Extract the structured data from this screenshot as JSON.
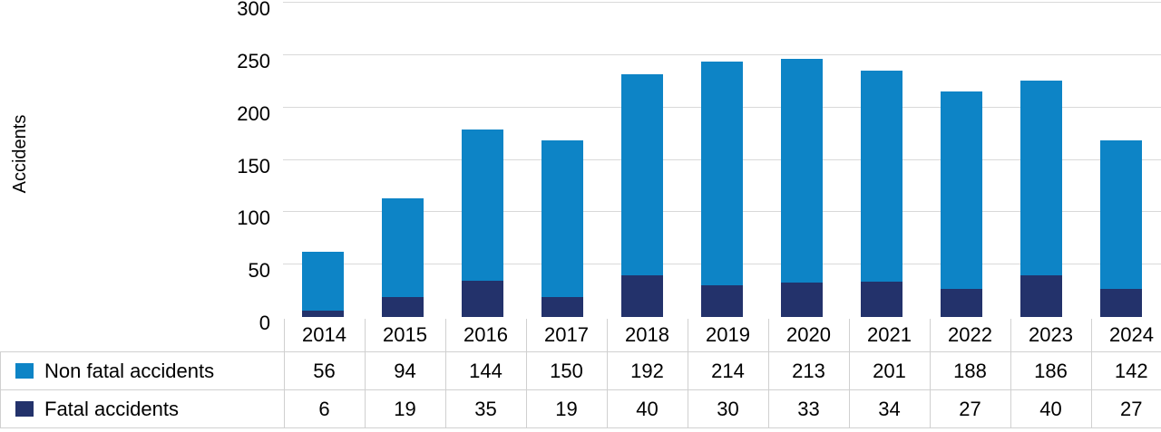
{
  "chart_data": {
    "type": "bar",
    "stacked": true,
    "title": "",
    "xlabel": "",
    "ylabel": "Accidents",
    "categories": [
      "2014",
      "2015",
      "2016",
      "2017",
      "2018",
      "2019",
      "2020",
      "2021",
      "2022",
      "2023",
      "2024"
    ],
    "series": [
      {
        "name": "Non fatal accidents",
        "color": "#0d84c6",
        "values": [
          56,
          94,
          144,
          150,
          192,
          214,
          213,
          201,
          188,
          186,
          142
        ]
      },
      {
        "name": "Fatal accidents",
        "color": "#23326b",
        "values": [
          6,
          19,
          35,
          19,
          40,
          30,
          33,
          34,
          27,
          40,
          27
        ]
      }
    ],
    "stack_bottom_series": "Fatal accidents",
    "ylim": [
      0,
      300
    ],
    "ytick_step": 50,
    "ytick_labels": [
      "0",
      "50",
      "100",
      "150",
      "200",
      "250",
      "300"
    ],
    "grid": true,
    "grid_color": "#d9d9d9",
    "table_border_color": "#d0d0d0",
    "legend_position": "data-table-left",
    "data_table_shown": true
  }
}
